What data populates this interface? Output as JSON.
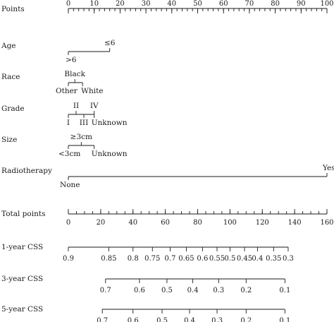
{
  "chart_data": {
    "type": "nomogram",
    "rows": [
      {
        "label": "Points",
        "kind": "scale",
        "min": 0,
        "max": 100,
        "minor_step": 2,
        "ticks": [
          0,
          10,
          20,
          30,
          40,
          50,
          60,
          70,
          80,
          90,
          100
        ],
        "tick_labels": [
          "0",
          "10",
          "20",
          "30",
          "40",
          "50",
          "60",
          "70",
          "80",
          "90",
          "100"
        ]
      },
      {
        "label": "Age",
        "kind": "factor",
        "levels": [
          {
            "name": ">6",
            "points": 0
          },
          {
            "name": "≤6",
            "points": 16
          }
        ]
      },
      {
        "label": "Race",
        "kind": "factor",
        "levels": [
          {
            "name": "Other",
            "points": 0
          },
          {
            "name": "Black",
            "points": 2.5
          },
          {
            "name": "White",
            "points": 5.5
          }
        ]
      },
      {
        "label": "Grade",
        "kind": "factor",
        "levels": [
          {
            "name": "I",
            "points": 0
          },
          {
            "name": "II",
            "points": 3
          },
          {
            "name": "III",
            "points": 6
          },
          {
            "name": "IV",
            "points": 10
          },
          {
            "name": "Unknown",
            "points": 10
          }
        ]
      },
      {
        "label": "Size",
        "kind": "factor",
        "levels": [
          {
            "name": "<3cm",
            "points": 0
          },
          {
            "name": "≥3cm",
            "points": 5
          },
          {
            "name": "Unknown",
            "points": 10
          }
        ]
      },
      {
        "label": "Radiotherapy",
        "kind": "factor",
        "levels": [
          {
            "name": "None",
            "points": 0
          },
          {
            "name": "Yes",
            "points": 100
          }
        ]
      },
      {
        "label": "Total points",
        "kind": "scale",
        "min": 0,
        "max": 160,
        "minor_step": 5,
        "ticks": [
          0,
          20,
          40,
          60,
          80,
          100,
          120,
          140,
          160
        ],
        "tick_labels": [
          "0",
          "20",
          "40",
          "60",
          "80",
          "100",
          "120",
          "140",
          "160"
        ]
      },
      {
        "label": "1-year CSS",
        "kind": "prob",
        "ticks": [
          {
            "label": "0.9",
            "total": 0
          },
          {
            "label": "0.85",
            "total": 25
          },
          {
            "label": "0.8",
            "total": 40
          },
          {
            "label": "0.75",
            "total": 52
          },
          {
            "label": "0.7",
            "total": 63
          },
          {
            "label": "0.65",
            "total": 73
          },
          {
            "label": "0.6",
            "total": 83
          },
          {
            "label": "0.55",
            "total": 92
          },
          {
            "label": "0.5",
            "total": 100
          },
          {
            "label": "0.45",
            "total": 109
          },
          {
            "label": "0.4",
            "total": 117
          },
          {
            "label": "0.35",
            "total": 127
          },
          {
            "label": "0.3",
            "total": 136
          }
        ]
      },
      {
        "label": "3-year CSS",
        "kind": "prob",
        "ticks": [
          {
            "label": "0.7",
            "total": 23
          },
          {
            "label": "0.6",
            "total": 44
          },
          {
            "label": "0.5",
            "total": 61
          },
          {
            "label": "0.4",
            "total": 77
          },
          {
            "label": "0.3",
            "total": 93
          },
          {
            "label": "0.2",
            "total": 110
          },
          {
            "label": "0.1",
            "total": 134
          }
        ]
      },
      {
        "label": "5-year CSS",
        "kind": "prob",
        "ticks": [
          {
            "label": "0.7",
            "total": 21
          },
          {
            "label": "0.6",
            "total": 40
          },
          {
            "label": "0.5",
            "total": 58
          },
          {
            "label": "0.4",
            "total": 75
          },
          {
            "label": "0.3",
            "total": 92
          },
          {
            "label": "0.2",
            "total": 110
          },
          {
            "label": "0.1",
            "total": 134
          }
        ]
      }
    ]
  }
}
